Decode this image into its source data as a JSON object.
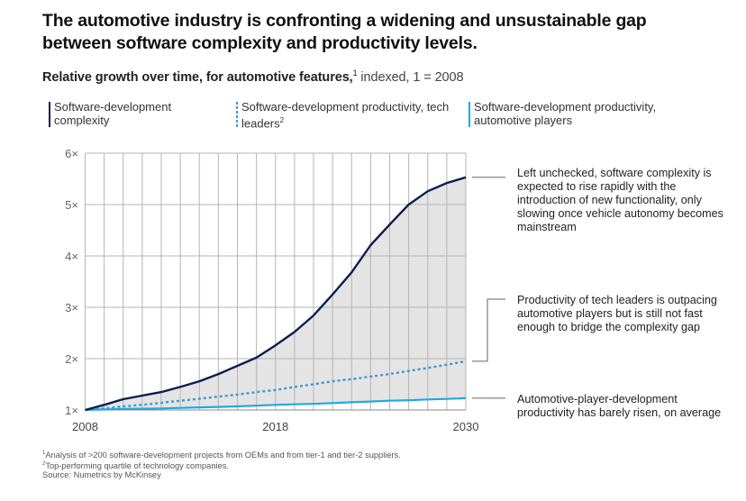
{
  "header": {
    "title": "The automotive industry is confronting a widening and unsustainable gap between software complexity and productivity levels.",
    "subtitle_bold": "Relative growth over time, for automotive features,",
    "subtitle_sup": "1",
    "subtitle_rest": " indexed, 1 = 2008"
  },
  "legend": [
    {
      "label": "Software-development complexity",
      "sup": "",
      "style": "solid-navy"
    },
    {
      "label": "Software-development productivity, tech leaders",
      "sup": "2",
      "style": "dotted-blue"
    },
    {
      "label": "Software-development productivity, automotive players",
      "sup": "",
      "style": "solid-cyan"
    }
  ],
  "annotations": [
    {
      "text": "Left unchecked, software complexity is expected to rise rapidly with the introduction of new functionality, only slowing once vehicle autonomy becomes mainstream",
      "series": "complexity"
    },
    {
      "text": "Productivity of tech leaders is outpacing automotive players but is still not fast enough to bridge the complexity gap",
      "series": "tech_leaders"
    },
    {
      "text": "Automotive-player-development productivity has barely risen, on average",
      "series": "automotive"
    }
  ],
  "footnotes": [
    {
      "sup": "1",
      "text": "Analysis of >200 software-development projects from OEMs and from tier-1 and tier-2 suppliers."
    },
    {
      "sup": "2",
      "text": "Top-performing quartile of technology companies."
    },
    {
      "sup": "",
      "text": "Source: Numetrics by McKinsey"
    }
  ],
  "colors": {
    "complexity": "#0b1e4d",
    "tech_leaders": "#3c9ad2",
    "automotive": "#20a8e0",
    "gap_fill": "#e4e4e4",
    "grid": "#b5b5b5"
  },
  "chart_data": {
    "type": "line",
    "title": "The automotive industry is confronting a widening and unsustainable gap between software complexity and productivity levels.",
    "subtitle": "Relative growth over time, for automotive features, indexed, 1 = 2008",
    "xlabel": "",
    "ylabel": "",
    "x_range": [
      2008,
      2030
    ],
    "x_tick_labels": [
      "2008",
      "2018",
      "2030"
    ],
    "x_grid_steps": 20,
    "x_tick_label_steps": [
      0,
      10,
      20
    ],
    "y_tick_labels": [
      "1×",
      "2×",
      "3×",
      "4×",
      "5×",
      "6×"
    ],
    "y_ticks": [
      1,
      2,
      3,
      4,
      5,
      6
    ],
    "ylim": [
      1,
      6
    ],
    "grid": true,
    "legend_position": "top",
    "shaded_area": "between complexity and automotive players",
    "series": [
      {
        "name": "Software-development complexity",
        "style": "solid",
        "values": [
          1.0,
          1.1,
          1.21,
          1.28,
          1.35,
          1.45,
          1.56,
          1.7,
          1.86,
          2.02,
          2.26,
          2.52,
          2.84,
          3.25,
          3.68,
          4.21,
          4.61,
          5.0,
          5.26,
          5.42,
          5.53
        ]
      },
      {
        "name": "Software-development productivity, tech leaders",
        "style": "dotted",
        "values": [
          1.0,
          1.03,
          1.07,
          1.1,
          1.14,
          1.18,
          1.22,
          1.26,
          1.3,
          1.35,
          1.39,
          1.45,
          1.5,
          1.56,
          1.6,
          1.65,
          1.7,
          1.76,
          1.82,
          1.88,
          1.95
        ]
      },
      {
        "name": "Software-development productivity, automotive players",
        "style": "solid",
        "values": [
          1.0,
          1.01,
          1.02,
          1.025,
          1.03,
          1.04,
          1.05,
          1.06,
          1.07,
          1.085,
          1.1,
          1.11,
          1.12,
          1.135,
          1.15,
          1.165,
          1.18,
          1.19,
          1.205,
          1.215,
          1.23
        ]
      }
    ]
  }
}
